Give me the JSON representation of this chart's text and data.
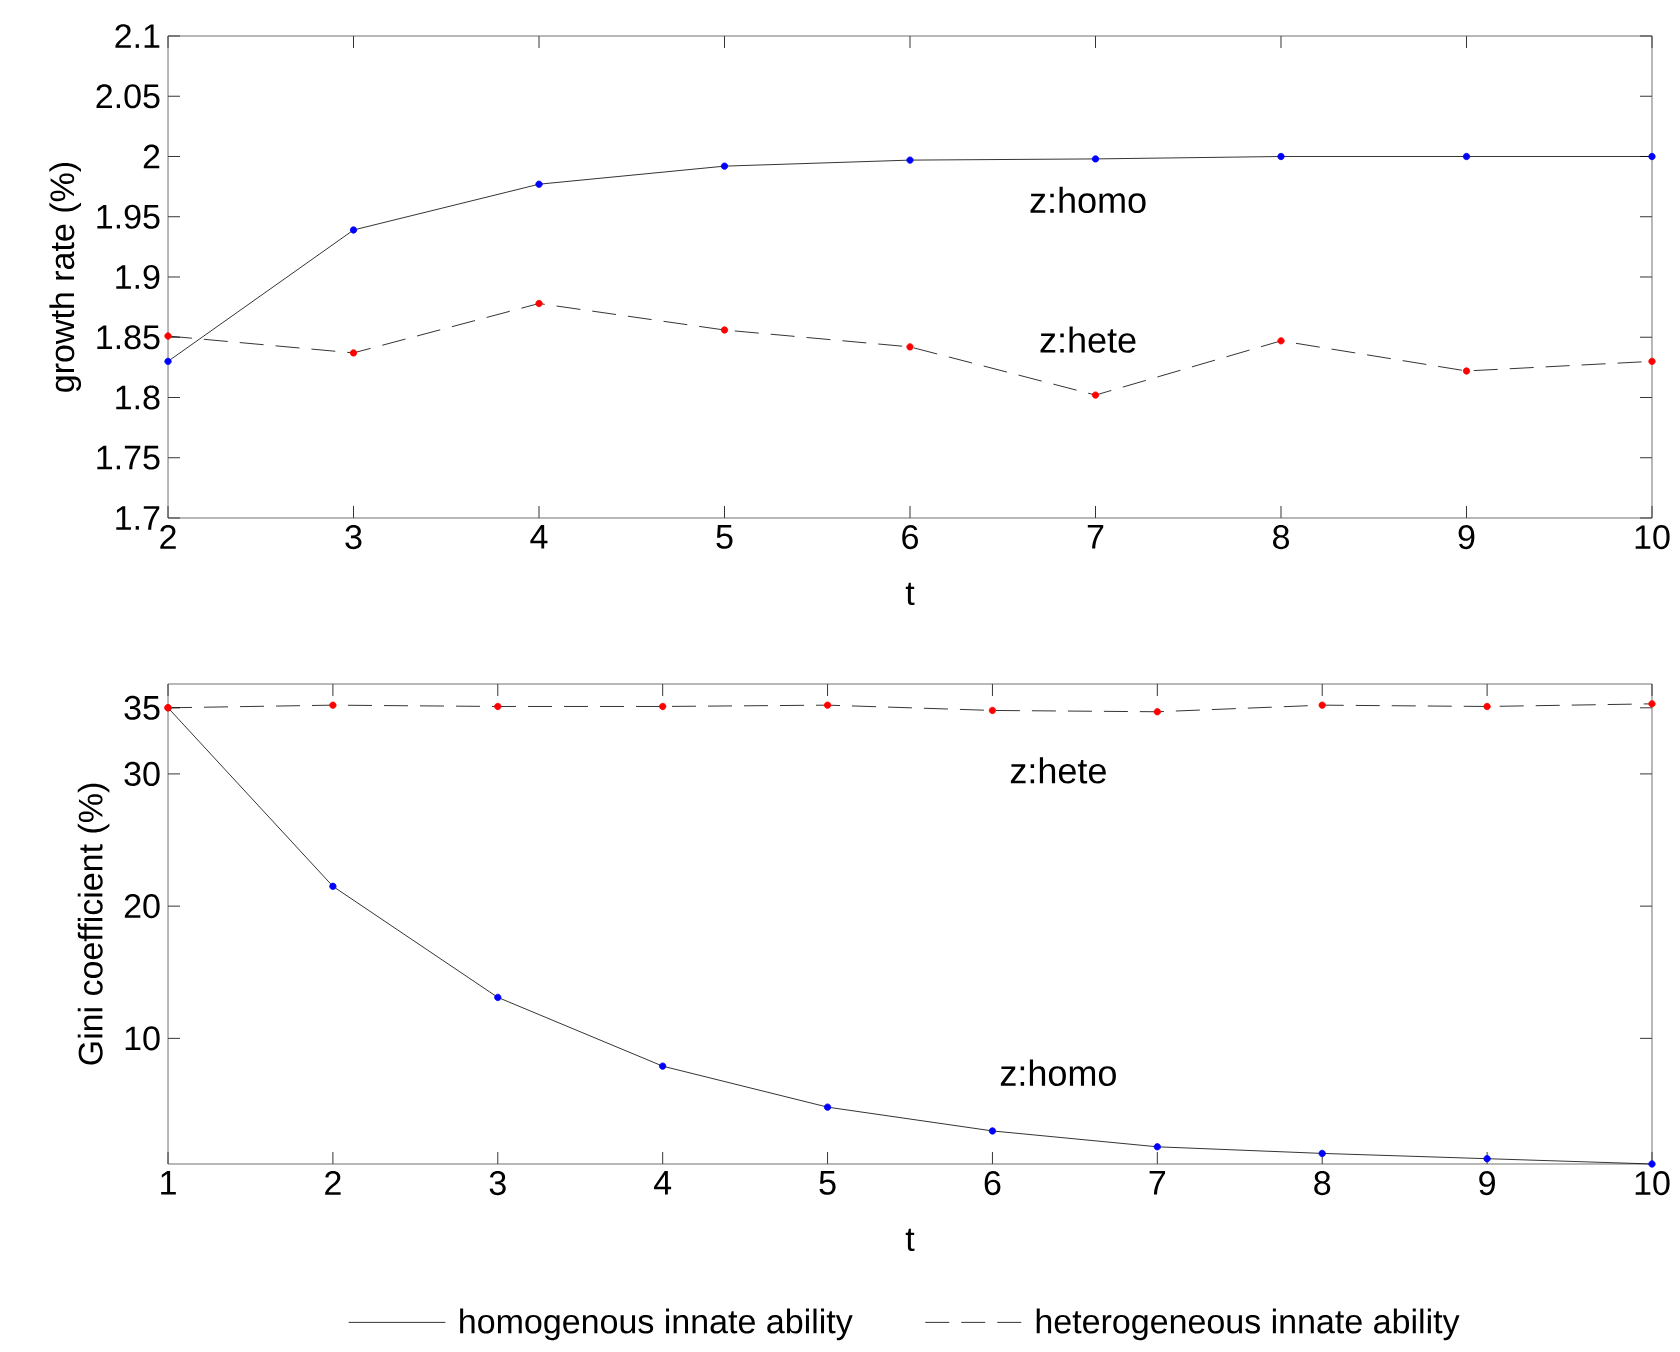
{
  "chart_data": [
    {
      "type": "line",
      "xlabel": "t",
      "ylabel": "growth rate (%)",
      "x": [
        2,
        3,
        4,
        5,
        6,
        7,
        8,
        9,
        10
      ],
      "xlim": [
        2,
        10
      ],
      "ylim": [
        1.7,
        2.1
      ],
      "xticks": [
        2,
        3,
        4,
        5,
        6,
        7,
        8,
        9,
        10
      ],
      "yticks": [
        1.7,
        1.75,
        1.8,
        1.85,
        1.9,
        1.95,
        2,
        2.05,
        2.1
      ],
      "marker": "circle",
      "grid": false,
      "series": [
        {
          "color": "#000000",
          "line_style": "solid",
          "colors": [
            "#0000ff",
            "#0000ff",
            "#0000ff",
            "#0000ff",
            "#0000ff",
            "#0000ff",
            "#0000ff",
            "#0000ff",
            "#0000ff"
          ],
          "values": [
            1.83,
            1.939,
            1.977,
            1.992,
            1.997,
            1.998,
            2.0,
            2.0,
            2.0
          ]
        },
        {
          "color": "#000000",
          "line_style": "dashed",
          "colors": [
            "#ff0000",
            "#ff0000",
            "#ff0000",
            "#ff0000",
            "#ff0000",
            "#ff0000",
            "#ff0000",
            "#ff0000",
            "#ff0000"
          ],
          "values": [
            1.851,
            1.837,
            1.878,
            1.856,
            1.842,
            1.802,
            1.847,
            1.822,
            1.83
          ]
        }
      ],
      "annotations": [
        "z:homo",
        "z:hete"
      ]
    },
    {
      "type": "line",
      "xlabel": "t",
      "ylabel": "Gini coefficient (%)",
      "x": [
        1,
        2,
        3,
        4,
        5,
        6,
        7,
        8,
        9,
        10
      ],
      "xlim": [
        1,
        10
      ],
      "ylim": [
        0.5,
        36.8
      ],
      "xticks": [
        1,
        2,
        3,
        4,
        5,
        6,
        7,
        8,
        9,
        10
      ],
      "yticks": [
        10,
        20,
        30,
        35
      ],
      "marker": "circle",
      "grid": false,
      "legend": "bottom",
      "series": [
        {
          "name": "homogenous innate ability",
          "color": "#000000",
          "line_style": "solid",
          "colors": [
            "#ff0000",
            "#0000ff",
            "#0000ff",
            "#0000ff",
            "#0000ff",
            "#0000ff",
            "#0000ff",
            "#0000ff",
            "#0000ff",
            "#0000ff"
          ],
          "values": [
            35,
            21.5,
            13.1,
            7.9,
            4.8,
            3.0,
            1.8,
            1.3,
            0.9,
            0.5
          ]
        },
        {
          "name": "heterogeneous innate ability",
          "color": "#000000",
          "line_style": "dashed",
          "colors": [
            "#ff0000",
            "#ff0000",
            "#ff0000",
            "#ff0000",
            "#ff0000",
            "#ff0000",
            "#ff0000",
            "#ff0000",
            "#ff0000",
            "#ff0000"
          ],
          "values": [
            35,
            35.2,
            35.1,
            35.1,
            35.2,
            34.8,
            34.7,
            35.2,
            35.1,
            35.3
          ]
        }
      ],
      "annotations": [
        "z:hete",
        "z:homo"
      ]
    }
  ]
}
